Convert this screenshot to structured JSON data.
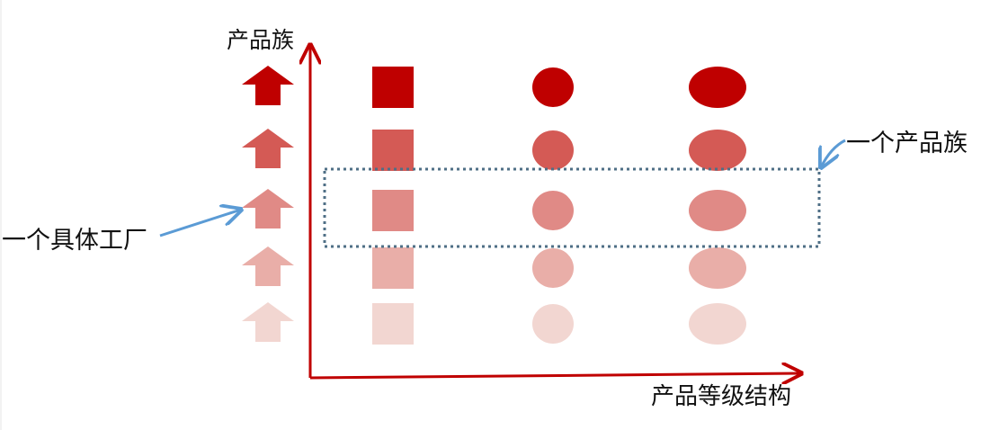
{
  "axes": {
    "y_label": "产品族",
    "x_label": "产品等级结构"
  },
  "annotations": {
    "factory": "一个具体工厂",
    "family": "一个产品族"
  },
  "colors": {
    "axis": "#c00000",
    "highlight_box": "#4f6f86",
    "pointer": "#5b9bd5",
    "rows": [
      "#bf0000",
      "#d45a55",
      "#e08a86",
      "#e9aea8",
      "#f2d6d1"
    ]
  },
  "grid": {
    "row_count": 5,
    "columns": [
      {
        "shape": "arrow-icon"
      },
      {
        "shape": "square"
      },
      {
        "shape": "circle"
      },
      {
        "shape": "ellipse"
      }
    ],
    "highlighted_row": 2
  }
}
